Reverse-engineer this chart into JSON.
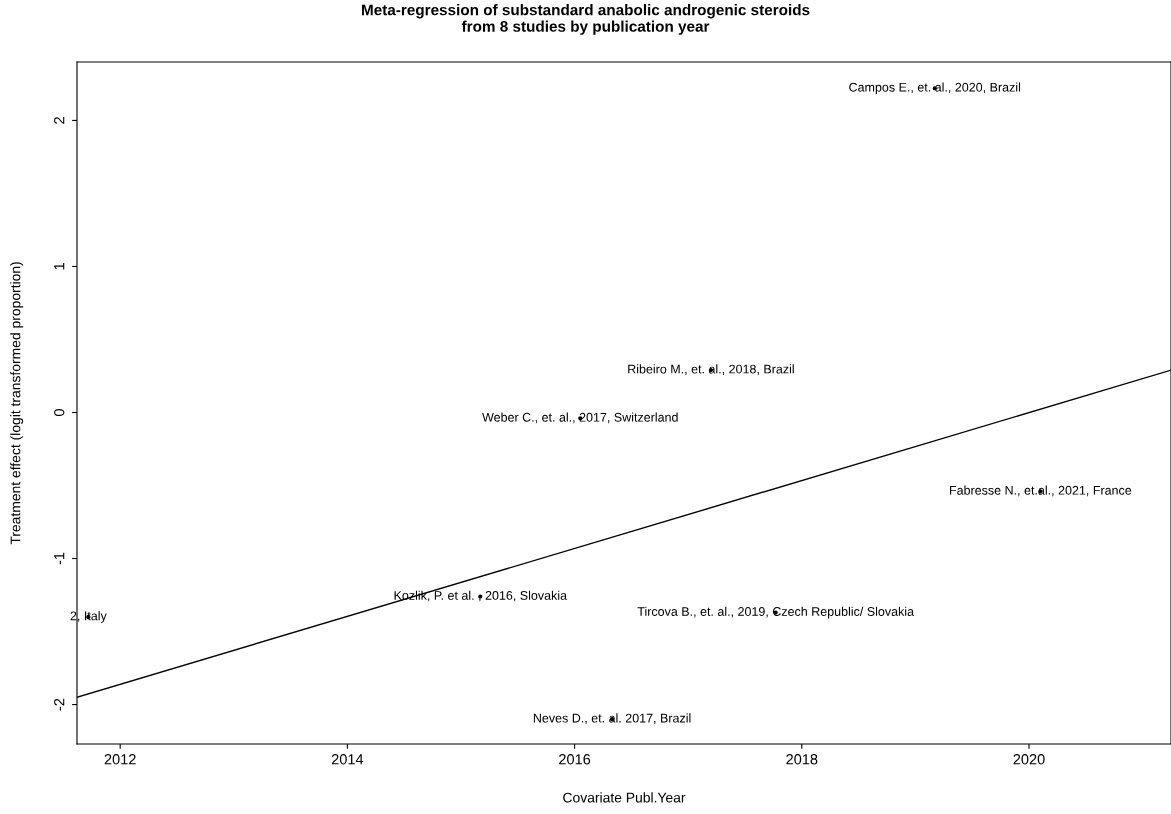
{
  "chart_data": {
    "type": "line",
    "title": "Meta-regression of substandard anabolic androgenic steroids\nfrom 8 studies by publication year",
    "xlabel": "Covariate Publ.Year",
    "ylabel": "Treatment effect (logit transformed proportion)",
    "series": [
      {
        "color": "#000000",
        "x": [
          2011.62,
          2021.25
        ],
        "values": [
          -1.95,
          0.29
        ]
      },
      {
        "type": "scatter",
        "color": "#000000",
        "marker": "circle",
        "x": [
          2019.17,
          2017.2,
          2016.05,
          2020.1,
          2015.17,
          2011.72,
          2017.77,
          2016.33
        ],
        "values": [
          2.22,
          0.29,
          -0.04,
          -0.54,
          -1.26,
          -1.4,
          -1.37,
          -2.1
        ]
      }
    ],
    "xlim": [
      2011.62,
      2021.25
    ],
    "xticks": [
      2012,
      2014,
      2016,
      2018,
      2020
    ],
    "ylim": [
      -2.27,
      2.4
    ],
    "yticks": [
      -2,
      -1,
      0,
      1,
      2
    ],
    "grid": false,
    "legend": false,
    "line_style": "solid",
    "annotations": [
      {
        "text": "Campos E., et. al., 2020, Brazil",
        "x": 2019.17,
        "y": 2.22
      },
      {
        "text": "Ribeiro M., et. al., 2018, Brazil",
        "x": 2017.2,
        "y": 0.29
      },
      {
        "text": "Weber C., et. al., 2017, Switzerland",
        "x": 2016.05,
        "y": -0.04
      },
      {
        "text": "Fabresse N., et.al., 2021, France",
        "x": 2020.1,
        "y": -0.54
      },
      {
        "text": "Kozlik, P. et al. , 2016, Slovakia",
        "x": 2015.17,
        "y": -1.26
      },
      {
        "text": "2, Italy",
        "x": 2011.72,
        "y": -1.4
      },
      {
        "text": "Tircova B., et. al., 2019, Czech Republic/ Slovakia",
        "x": 2017.77,
        "y": -1.37
      },
      {
        "text": "Neves D., et. al. 2017, Brazil",
        "x": 2016.33,
        "y": -2.1
      }
    ]
  }
}
